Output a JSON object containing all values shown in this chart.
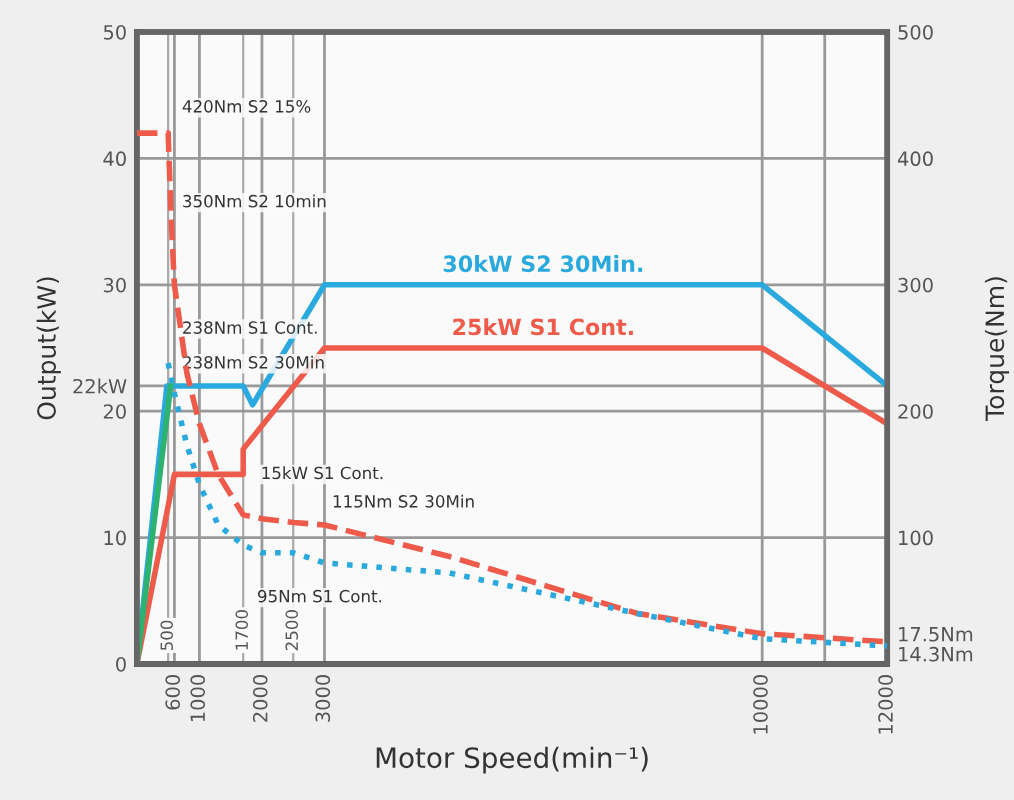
{
  "chart_data": {
    "type": "line",
    "xlabel": "Motor Speed(min⁻¹)",
    "ylabel": "Output(kW)",
    "y2label": "Torque(Nm)",
    "xlim": [
      0,
      12000
    ],
    "xticks": [
      600,
      1000,
      2000,
      3000,
      10000,
      {
        "value": 11000,
        "label": null
      },
      12000
    ],
    "ylim": [
      0,
      50
    ],
    "yticks": [
      0,
      10,
      {
        "value": 22,
        "label": "22kW"
      },
      20,
      30,
      40,
      50
    ],
    "y2lim": [
      0,
      500
    ],
    "y2ticks": [
      {
        "value": 14.3,
        "label": "14.3Nm"
      },
      {
        "value": 17.5,
        "label": "17.5Nm"
      },
      100,
      200,
      300,
      400,
      500
    ],
    "grid": true,
    "legend": false,
    "marker": "none",
    "series": [
      {
        "name": "30kW S2 30Min.",
        "color": "#2aa9df",
        "axis": "y",
        "line_style": "solid",
        "x": [
          0,
          480,
          1700,
          1850,
          3000,
          10000,
          12000
        ],
        "values": [
          0,
          22,
          22,
          20.5,
          30,
          30,
          22
        ]
      },
      {
        "name": "25kW S1 Cont.",
        "color": "#ef5b4b",
        "axis": "y",
        "line_style": "solid",
        "x": [
          0,
          600,
          1700,
          1700,
          3000,
          10000,
          12000
        ],
        "values": [
          0,
          15,
          15,
          17,
          25,
          25,
          19
        ]
      },
      {
        "color": "#2db36f",
        "axis": "y",
        "line_style": "solid",
        "x": [
          0,
          540
        ],
        "values": [
          0,
          22
        ]
      },
      {
        "color": "#ef5b4b",
        "axis": "y2",
        "line_style": "dashed",
        "x": [
          0,
          500,
          550,
          600,
          800,
          1000,
          1300,
          1700,
          2000,
          2500,
          3000,
          5000,
          8000,
          10000,
          12000
        ],
        "values": [
          420,
          420,
          350,
          300,
          230,
          190,
          150,
          118,
          115,
          112,
          110,
          85,
          40,
          24,
          17.5
        ]
      },
      {
        "color": "#2aa9df",
        "axis": "y2",
        "line_style": "dotted",
        "x": [
          500,
          600,
          800,
          1000,
          1300,
          1700,
          2000,
          2500,
          3000,
          5000,
          8000,
          10000,
          12000
        ],
        "values": [
          238,
          214,
          173,
          142,
          110,
          94,
          88,
          88,
          80,
          72,
          40,
          20,
          14.3
        ]
      }
    ],
    "ref_lines": [
      {
        "axis": "x",
        "value": 500,
        "label": "500"
      },
      {
        "axis": "x",
        "value": 1700,
        "label": "1700"
      },
      {
        "axis": "x",
        "value": 2500,
        "label": "2500"
      }
    ],
    "annotations": [
      "420Nm S2 15%",
      "350Nm S2 10min",
      "238Nm S1 Cont.",
      "238Nm S2 30Min",
      "15kW S1 Cont.",
      "115Nm S2 30Min",
      "95Nm S1 Cont."
    ]
  }
}
